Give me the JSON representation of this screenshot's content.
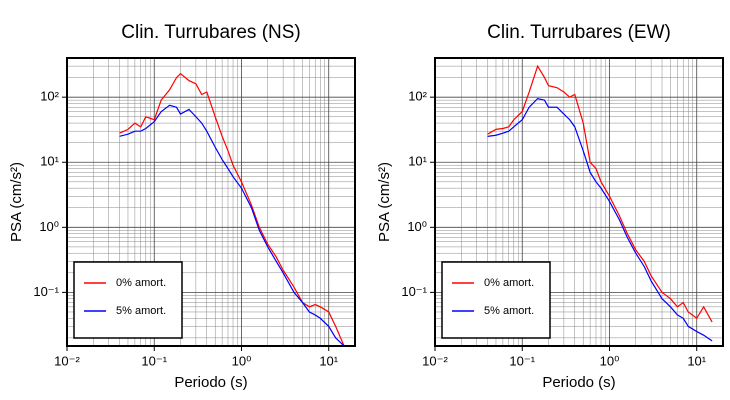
{
  "chart_data": [
    {
      "type": "line",
      "title": "Clin. Turrubares (NS)",
      "x_label": "Periodo (s)",
      "y_label": "PSA (cm/s²)",
      "x": [
        0.04,
        0.05,
        0.06,
        0.07,
        0.08,
        0.1,
        0.12,
        0.15,
        0.18,
        0.2,
        0.25,
        0.3,
        0.35,
        0.4,
        0.5,
        0.6,
        0.7,
        0.8,
        1.0,
        1.3,
        1.6,
        2,
        2.5,
        3,
        4,
        5,
        6,
        7,
        8,
        10,
        12,
        15
      ],
      "series": [
        {
          "name": "0% amort.",
          "color": "#ff0000",
          "values": [
            28,
            32,
            40,
            35,
            50,
            45,
            90,
            130,
            200,
            230,
            180,
            160,
            110,
            120,
            50,
            25,
            15,
            9,
            5,
            2.2,
            1.0,
            0.55,
            0.35,
            0.22,
            0.12,
            0.07,
            0.06,
            0.065,
            0.06,
            0.05,
            0.03,
            0.015
          ]
        },
        {
          "name": "5% amort.",
          "color": "#0000ff",
          "values": [
            25,
            27,
            30,
            30,
            33,
            42,
            60,
            75,
            70,
            55,
            65,
            50,
            40,
            30,
            17,
            11,
            8,
            6,
            4,
            2,
            0.9,
            0.5,
            0.3,
            0.2,
            0.1,
            0.07,
            0.05,
            0.045,
            0.04,
            0.03,
            0.02,
            0.015
          ]
        }
      ],
      "xlim": [
        0.01,
        20
      ],
      "ylim": [
        0.015,
        400
      ],
      "x_scale": "log",
      "y_scale": "log",
      "grid": true,
      "legend": "lower left",
      "xticks": [
        {
          "value": 0.01,
          "label": "10⁻²"
        },
        {
          "value": 0.1,
          "label": "10⁻¹"
        },
        {
          "value": 1,
          "label": "10⁰"
        },
        {
          "value": 10,
          "label": "10¹"
        }
      ],
      "yticks": [
        {
          "value": 0.1,
          "label": "10⁻¹"
        },
        {
          "value": 1,
          "label": "10⁰"
        },
        {
          "value": 10,
          "label": "10¹"
        },
        {
          "value": 100,
          "label": "10²"
        }
      ]
    },
    {
      "type": "line",
      "title": "Clin. Turrubares (EW)",
      "x_label": "Periodo (s)",
      "y_label": "PSA (cm/s²)",
      "x": [
        0.04,
        0.05,
        0.06,
        0.07,
        0.08,
        0.1,
        0.12,
        0.15,
        0.18,
        0.2,
        0.25,
        0.3,
        0.35,
        0.4,
        0.5,
        0.6,
        0.7,
        0.8,
        1.0,
        1.3,
        1.6,
        2,
        2.5,
        3,
        4,
        5,
        6,
        7,
        8,
        10,
        12,
        15
      ],
      "series": [
        {
          "name": "0% amort.",
          "color": "#ff0000",
          "values": [
            27,
            32,
            33,
            35,
            45,
            60,
            120,
            300,
            200,
            150,
            140,
            120,
            100,
            110,
            40,
            10,
            8,
            5,
            3,
            1.5,
            0.8,
            0.45,
            0.3,
            0.18,
            0.1,
            0.08,
            0.06,
            0.07,
            0.05,
            0.04,
            0.06,
            0.035
          ]
        },
        {
          "name": "5% amort.",
          "color": "#0000ff",
          "values": [
            25,
            26,
            28,
            30,
            35,
            45,
            70,
            95,
            90,
            70,
            70,
            55,
            45,
            35,
            15,
            7,
            5,
            4,
            2.5,
            1.3,
            0.7,
            0.4,
            0.25,
            0.15,
            0.08,
            0.06,
            0.045,
            0.04,
            0.03,
            0.025,
            0.022,
            0.018
          ]
        }
      ],
      "xlim": [
        0.01,
        20
      ],
      "ylim": [
        0.015,
        400
      ],
      "x_scale": "log",
      "y_scale": "log",
      "grid": true,
      "legend": "lower left",
      "xticks": [
        {
          "value": 0.01,
          "label": "10⁻²"
        },
        {
          "value": 0.1,
          "label": "10⁻¹"
        },
        {
          "value": 1,
          "label": "10⁰"
        },
        {
          "value": 10,
          "label": "10¹"
        }
      ],
      "yticks": [
        {
          "value": 0.1,
          "label": "10⁻¹"
        },
        {
          "value": 1,
          "label": "10⁰"
        },
        {
          "value": 10,
          "label": "10¹"
        },
        {
          "value": 100,
          "label": "10²"
        }
      ]
    }
  ]
}
